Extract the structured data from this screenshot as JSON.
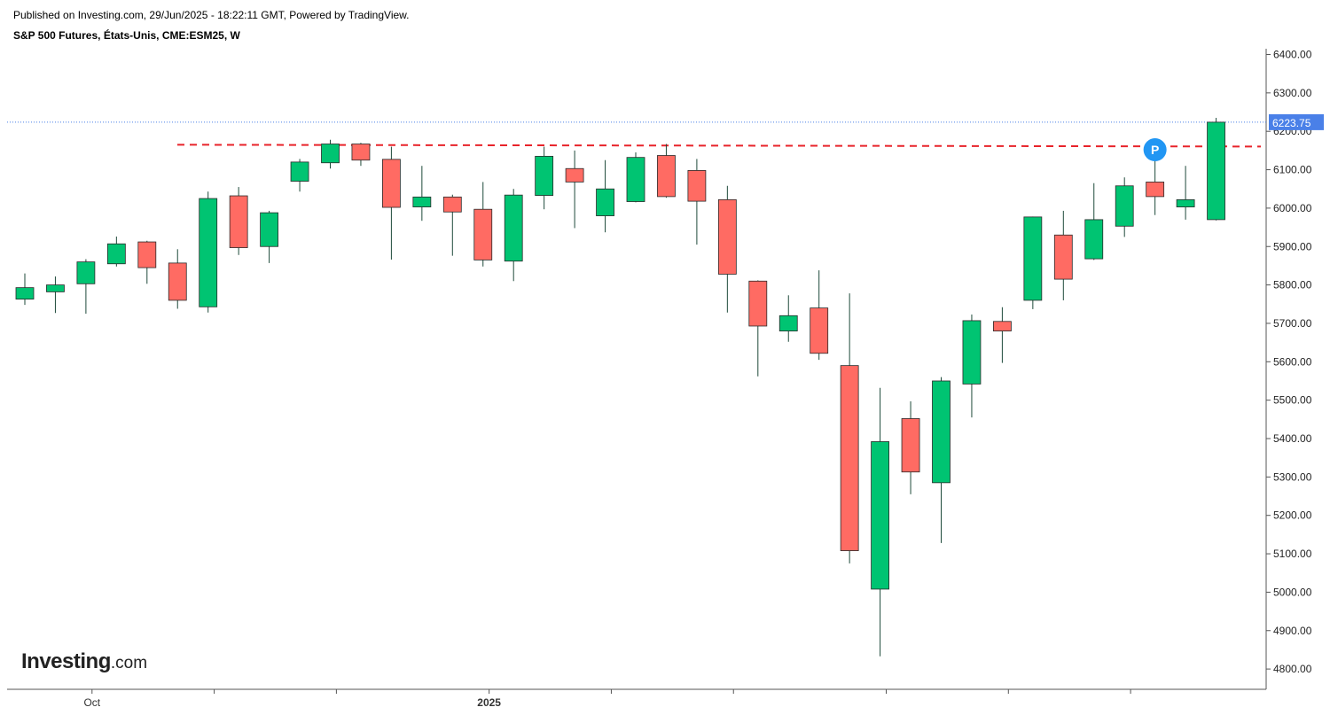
{
  "header": {
    "published": "Published on Investing.com, 29/Jun/2025 - 18:22:11 GMT, Powered by TradingView.",
    "symbol": "S&P 500 Futures, États-Unis, CME:ESM25, W"
  },
  "logo": {
    "main": "Investing",
    "suffix": ".com"
  },
  "colors": {
    "up": "#00c472",
    "down": "#ff6b63",
    "wick": "#1e4a3a",
    "last_price_bg": "#4a80e8",
    "resistance": "#e8232a",
    "marker": "#2196f3"
  },
  "marker": {
    "label": "P",
    "price": 6152,
    "candle_index": 37
  },
  "chart_data": {
    "type": "candlestick",
    "title": "S&P 500 Futures, États-Unis, CME:ESM25, W",
    "interval": "W",
    "ylim": [
      4760,
      6420
    ],
    "yticks": [
      "6400.00",
      "6300.00",
      "6200.00",
      "6100.00",
      "6000.00",
      "5900.00",
      "5800.00",
      "5700.00",
      "5600.00",
      "5500.00",
      "5400.00",
      "5300.00",
      "5200.00",
      "5100.00",
      "5000.00",
      "4900.00",
      "4800.00"
    ],
    "ytick_values": [
      6400,
      6300,
      6200,
      6100,
      6000,
      5900,
      5800,
      5700,
      5600,
      5500,
      5400,
      5300,
      5200,
      5100,
      5000,
      4900,
      4800
    ],
    "xticks": [
      {
        "label": "Oct",
        "position": 2.2,
        "bold": false
      },
      {
        "label": "",
        "position": 6.2,
        "bold": false
      },
      {
        "label": "",
        "position": 10.2,
        "bold": false
      },
      {
        "label": "2025",
        "position": 15.2,
        "bold": true
      },
      {
        "label": "",
        "position": 19.2,
        "bold": false
      },
      {
        "label": "",
        "position": 23.2,
        "bold": false
      },
      {
        "label": "",
        "position": 28.2,
        "bold": false
      },
      {
        "label": "",
        "position": 32.2,
        "bold": false
      },
      {
        "label": "",
        "position": 36.2,
        "bold": false
      }
    ],
    "last_price": 6223.75,
    "last_price_label": "6223.75",
    "resistance_level": 6165,
    "candles": [
      {
        "o": 5763,
        "h": 5830,
        "l": 5748,
        "c": 5793
      },
      {
        "o": 5782,
        "h": 5822,
        "l": 5727,
        "c": 5800
      },
      {
        "o": 5803,
        "h": 5867,
        "l": 5725,
        "c": 5860
      },
      {
        "o": 5855,
        "h": 5926,
        "l": 5848,
        "c": 5907
      },
      {
        "o": 5912,
        "h": 5915,
        "l": 5803,
        "c": 5845
      },
      {
        "o": 5857,
        "h": 5893,
        "l": 5738,
        "c": 5760
      },
      {
        "o": 5743,
        "h": 6043,
        "l": 5728,
        "c": 6025
      },
      {
        "o": 6032,
        "h": 6055,
        "l": 5878,
        "c": 5897
      },
      {
        "o": 5900,
        "h": 5993,
        "l": 5857,
        "c": 5988
      },
      {
        "o": 6070,
        "h": 6128,
        "l": 6043,
        "c": 6120
      },
      {
        "o": 6118,
        "h": 6178,
        "l": 6103,
        "c": 6167
      },
      {
        "o": 6167,
        "h": 6170,
        "l": 6110,
        "c": 6125
      },
      {
        "o": 6127,
        "h": 6160,
        "l": 5866,
        "c": 6002
      },
      {
        "o": 6003,
        "h": 6110,
        "l": 5967,
        "c": 6029
      },
      {
        "o": 6029,
        "h": 6035,
        "l": 5876,
        "c": 5990
      },
      {
        "o": 5997,
        "h": 6068,
        "l": 5848,
        "c": 5865
      },
      {
        "o": 5862,
        "h": 6050,
        "l": 5810,
        "c": 6034
      },
      {
        "o": 6033,
        "h": 6160,
        "l": 5997,
        "c": 6135
      },
      {
        "o": 6103,
        "h": 6150,
        "l": 5948,
        "c": 6068
      },
      {
        "o": 5980,
        "h": 6125,
        "l": 5937,
        "c": 6050
      },
      {
        "o": 6017,
        "h": 6145,
        "l": 6015,
        "c": 6132
      },
      {
        "o": 6137,
        "h": 6167,
        "l": 6027,
        "c": 6030
      },
      {
        "o": 6098,
        "h": 6128,
        "l": 5905,
        "c": 6018
      },
      {
        "o": 6022,
        "h": 6058,
        "l": 5728,
        "c": 5828
      },
      {
        "o": 5810,
        "h": 5812,
        "l": 5562,
        "c": 5693
      },
      {
        "o": 5680,
        "h": 5773,
        "l": 5652,
        "c": 5720
      },
      {
        "o": 5740,
        "h": 5838,
        "l": 5605,
        "c": 5622
      },
      {
        "o": 5590,
        "h": 5778,
        "l": 5075,
        "c": 5108
      },
      {
        "o": 5008,
        "h": 5532,
        "l": 4833,
        "c": 5392
      },
      {
        "o": 5452,
        "h": 5497,
        "l": 5255,
        "c": 5313
      },
      {
        "o": 5285,
        "h": 5560,
        "l": 5128,
        "c": 5550
      },
      {
        "o": 5542,
        "h": 5723,
        "l": 5455,
        "c": 5707
      },
      {
        "o": 5705,
        "h": 5742,
        "l": 5597,
        "c": 5680
      },
      {
        "o": 5760,
        "h": 5978,
        "l": 5737,
        "c": 5977
      },
      {
        "o": 5930,
        "h": 5993,
        "l": 5760,
        "c": 5815
      },
      {
        "o": 5868,
        "h": 6065,
        "l": 5865,
        "c": 5970
      },
      {
        "o": 5953,
        "h": 6080,
        "l": 5925,
        "c": 6058
      },
      {
        "o": 6068,
        "h": 6130,
        "l": 5982,
        "c": 6030
      },
      {
        "o": 6003,
        "h": 6110,
        "l": 5970,
        "c": 6022
      },
      {
        "o": 5970,
        "h": 6235,
        "l": 5968,
        "c": 6223.75
      }
    ]
  }
}
